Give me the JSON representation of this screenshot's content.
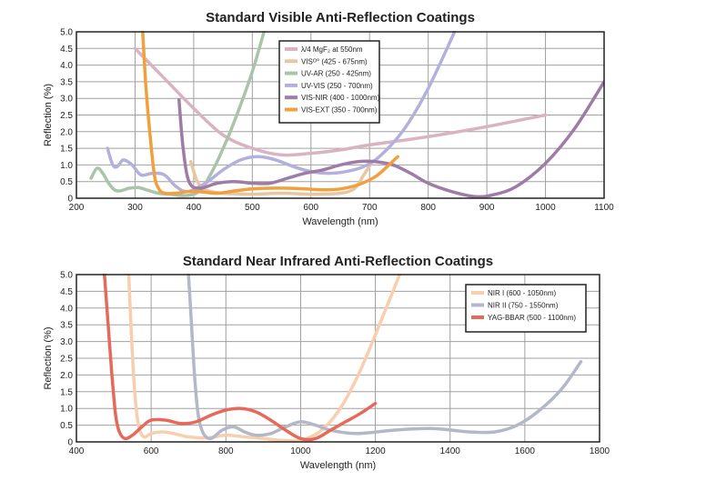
{
  "chart_data": [
    {
      "type": "line",
      "title": "Standard Visible Anti-Reflection Coatings",
      "xlabel": "Wavelength (nm)",
      "ylabel": "Reflection (%)",
      "xlim": [
        200,
        1100
      ],
      "ylim": [
        0,
        5
      ],
      "grid": true,
      "legend_position": "top-center",
      "x_ticks": [
        200,
        300,
        400,
        500,
        600,
        700,
        800,
        900,
        1000,
        1100
      ],
      "y_ticks": [
        0,
        0.5,
        1.0,
        1.5,
        2.0,
        2.5,
        3.0,
        3.5,
        4.0,
        4.5,
        5.0
      ],
      "x_tick_labels": [
        "200",
        "300",
        "400",
        "500",
        "600",
        "700",
        "800",
        "900",
        "1000",
        "1100"
      ],
      "y_tick_labels": [
        "0",
        "0.5",
        "1.0",
        "1.5",
        "2.0",
        "2.5",
        "3.0",
        "3.5",
        "4.0",
        "4.5",
        "5.0"
      ],
      "series": [
        {
          "name": "λ/4 MgF₂ at 550nm",
          "color": "#d9b3c2",
          "points": [
            [
              300,
              4.5
            ],
            [
              350,
              3.6
            ],
            [
              400,
              2.7
            ],
            [
              450,
              1.9
            ],
            [
              500,
              1.5
            ],
            [
              550,
              1.3
            ],
            [
              600,
              1.35
            ],
            [
              650,
              1.45
            ],
            [
              700,
              1.6
            ],
            [
              800,
              1.85
            ],
            [
              900,
              2.15
            ],
            [
              1000,
              2.5
            ]
          ]
        },
        {
          "name": "VISᴼ° (425 - 675nm)",
          "color": "#e8c7a0",
          "points": [
            [
              395,
              1.1
            ],
            [
              405,
              0.55
            ],
            [
              415,
              0.3
            ],
            [
              425,
              0.22
            ],
            [
              450,
              0.15
            ],
            [
              500,
              0.12
            ],
            [
              550,
              0.15
            ],
            [
              600,
              0.12
            ],
            [
              650,
              0.15
            ],
            [
              675,
              0.3
            ],
            [
              690,
              0.7
            ],
            [
              705,
              1.1
            ]
          ]
        },
        {
          "name": "UV-AR (250 - 425nm)",
          "color": "#a9c4a9",
          "points": [
            [
              225,
              0.6
            ],
            [
              235,
              0.9
            ],
            [
              245,
              0.75
            ],
            [
              255,
              0.45
            ],
            [
              265,
              0.25
            ],
            [
              275,
              0.22
            ],
            [
              290,
              0.3
            ],
            [
              305,
              0.32
            ],
            [
              320,
              0.25
            ],
            [
              340,
              0.15
            ],
            [
              360,
              0.12
            ],
            [
              380,
              0.08
            ],
            [
              400,
              0.12
            ],
            [
              415,
              0.3
            ],
            [
              425,
              0.6
            ],
            [
              440,
              1.1
            ],
            [
              460,
              1.9
            ],
            [
              480,
              2.8
            ],
            [
              500,
              3.8
            ],
            [
              520,
              5.0
            ]
          ]
        },
        {
          "name": "UV-VIS (250 - 700nm)",
          "color": "#b4b0dc",
          "points": [
            [
              253,
              1.5
            ],
            [
              262,
              1.0
            ],
            [
              270,
              0.95
            ],
            [
              280,
              1.15
            ],
            [
              295,
              1.0
            ],
            [
              310,
              0.7
            ],
            [
              330,
              0.75
            ],
            [
              350,
              0.7
            ],
            [
              370,
              0.35
            ],
            [
              390,
              0.2
            ],
            [
              420,
              0.45
            ],
            [
              450,
              0.85
            ],
            [
              480,
              1.15
            ],
            [
              510,
              1.25
            ],
            [
              540,
              1.15
            ],
            [
              570,
              0.95
            ],
            [
              600,
              0.8
            ],
            [
              630,
              0.75
            ],
            [
              660,
              0.8
            ],
            [
              690,
              0.95
            ],
            [
              720,
              1.3
            ],
            [
              760,
              2.1
            ],
            [
              800,
              3.3
            ],
            [
              845,
              5.0
            ]
          ]
        },
        {
          "name": "VIS-NIR (400 - 1000nm)",
          "color": "#9f7ba8",
          "points": [
            [
              375,
              2.95
            ],
            [
              382,
              1.5
            ],
            [
              392,
              0.5
            ],
            [
              410,
              0.3
            ],
            [
              440,
              0.45
            ],
            [
              470,
              0.5
            ],
            [
              500,
              0.45
            ],
            [
              530,
              0.45
            ],
            [
              560,
              0.6
            ],
            [
              590,
              0.75
            ],
            [
              620,
              0.85
            ],
            [
              650,
              1.0
            ],
            [
              680,
              1.1
            ],
            [
              710,
              1.1
            ],
            [
              740,
              1.0
            ],
            [
              770,
              0.75
            ],
            [
              800,
              0.45
            ],
            [
              840,
              0.2
            ],
            [
              880,
              0.05
            ],
            [
              910,
              0.1
            ],
            [
              950,
              0.35
            ],
            [
              1000,
              1.05
            ],
            [
              1050,
              2.1
            ],
            [
              1100,
              3.5
            ]
          ]
        },
        {
          "name": "VIS-EXT (350 - 700nm)",
          "color": "#f2a03d",
          "points": [
            [
              313,
              5.0
            ],
            [
              318,
              3.5
            ],
            [
              325,
              2.0
            ],
            [
              333,
              0.7
            ],
            [
              340,
              0.3
            ],
            [
              350,
              0.15
            ],
            [
              370,
              0.15
            ],
            [
              390,
              0.2
            ],
            [
              410,
              0.2
            ],
            [
              440,
              0.15
            ],
            [
              470,
              0.22
            ],
            [
              500,
              0.28
            ],
            [
              530,
              0.3
            ],
            [
              560,
              0.3
            ],
            [
              590,
              0.28
            ],
            [
              620,
              0.25
            ],
            [
              650,
              0.28
            ],
            [
              680,
              0.4
            ],
            [
              710,
              0.65
            ],
            [
              730,
              0.95
            ],
            [
              748,
              1.25
            ]
          ]
        }
      ]
    },
    {
      "type": "line",
      "title": "Standard Near Infrared Anti-Reflection Coatings",
      "xlabel": "Wavelength (nm)",
      "ylabel": "Reflection (%)",
      "xlim": [
        400,
        1800
      ],
      "ylim": [
        0,
        5
      ],
      "grid": true,
      "legend_position": "top-right",
      "x_ticks": [
        400,
        600,
        800,
        1000,
        1200,
        1400,
        1600,
        1800
      ],
      "y_ticks": [
        0,
        0.5,
        1.0,
        1.5,
        2.0,
        2.5,
        3.0,
        3.5,
        4.0,
        4.5,
        5.0
      ],
      "x_tick_labels": [
        "400",
        "600",
        "800",
        "1000",
        "1200",
        "1400",
        "1600",
        "1800"
      ],
      "y_tick_labels": [
        "0",
        "0.5",
        "1.0",
        "1.5",
        "2.0",
        "2.5",
        "3.0",
        "3.5",
        "4.0",
        "4.5",
        "5.0"
      ],
      "series": [
        {
          "name": "NIR I (600 - 1050nm)",
          "color": "#f7cfae",
          "points": [
            [
              540,
              5.0
            ],
            [
              548,
              3.0
            ],
            [
              556,
              1.5
            ],
            [
              566,
              0.5
            ],
            [
              580,
              0.15
            ],
            [
              600,
              0.25
            ],
            [
              630,
              0.3
            ],
            [
              660,
              0.25
            ],
            [
              700,
              0.15
            ],
            [
              750,
              0.12
            ],
            [
              800,
              0.2
            ],
            [
              850,
              0.15
            ],
            [
              900,
              0.1
            ],
            [
              950,
              0.05
            ],
            [
              1000,
              0.05
            ],
            [
              1050,
              0.3
            ],
            [
              1100,
              0.9
            ],
            [
              1150,
              1.9
            ],
            [
              1200,
              3.2
            ],
            [
              1265,
              5.0
            ]
          ]
        },
        {
          "name": "NIR II (750 - 1550nm)",
          "color": "#b3b8c8",
          "points": [
            [
              700,
              5.0
            ],
            [
              708,
              3.5
            ],
            [
              716,
              2.0
            ],
            [
              726,
              0.8
            ],
            [
              740,
              0.25
            ],
            [
              760,
              0.1
            ],
            [
              790,
              0.35
            ],
            [
              820,
              0.45
            ],
            [
              850,
              0.3
            ],
            [
              880,
              0.2
            ],
            [
              920,
              0.25
            ],
            [
              960,
              0.45
            ],
            [
              1000,
              0.6
            ],
            [
              1040,
              0.5
            ],
            [
              1080,
              0.35
            ],
            [
              1150,
              0.25
            ],
            [
              1250,
              0.35
            ],
            [
              1350,
              0.4
            ],
            [
              1450,
              0.3
            ],
            [
              1520,
              0.3
            ],
            [
              1580,
              0.5
            ],
            [
              1640,
              0.95
            ],
            [
              1700,
              1.6
            ],
            [
              1750,
              2.4
            ]
          ]
        },
        {
          "name": "YAG-BBAR (500 - 1100nm)",
          "color": "#e66a5c",
          "points": [
            [
              475,
              5.0
            ],
            [
              485,
              3.5
            ],
            [
              495,
              2.0
            ],
            [
              505,
              0.8
            ],
            [
              515,
              0.3
            ],
            [
              530,
              0.1
            ],
            [
              550,
              0.2
            ],
            [
              575,
              0.45
            ],
            [
              600,
              0.65
            ],
            [
              640,
              0.65
            ],
            [
              680,
              0.55
            ],
            [
              720,
              0.6
            ],
            [
              760,
              0.8
            ],
            [
              800,
              0.95
            ],
            [
              840,
              1.0
            ],
            [
              880,
              0.9
            ],
            [
              920,
              0.65
            ],
            [
              960,
              0.35
            ],
            [
              1000,
              0.1
            ],
            [
              1040,
              0.1
            ],
            [
              1080,
              0.35
            ],
            [
              1120,
              0.6
            ],
            [
              1160,
              0.85
            ],
            [
              1200,
              1.15
            ]
          ]
        }
      ]
    }
  ]
}
